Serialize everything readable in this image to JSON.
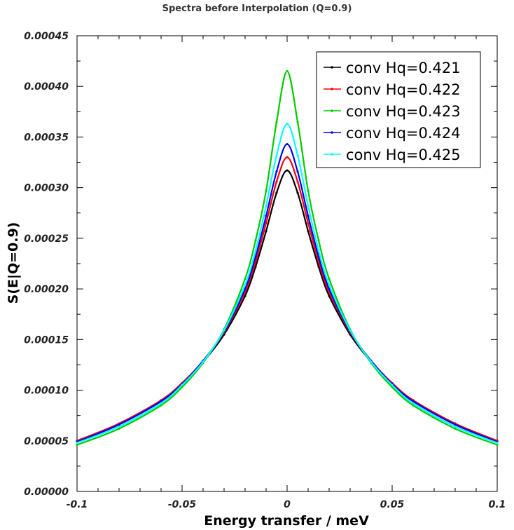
{
  "chart_data": {
    "type": "line",
    "title": "Spectra before Interpolation (Q=0.9)",
    "xlabel": "Energy transfer / meV",
    "ylabel": "S(E|Q=0.9)",
    "xlim": [
      -0.1,
      0.1
    ],
    "ylim": [
      0,
      0.00045
    ],
    "xticks": [
      -0.1,
      -0.05,
      0,
      0.05,
      0.1
    ],
    "xtick_labels": [
      "-0.1",
      "-0.05",
      "0",
      "0.05",
      "0.1"
    ],
    "yticks": [
      0,
      5e-05,
      0.0001,
      0.00015,
      0.0002,
      0.00025,
      0.0003,
      0.00035,
      0.0004,
      0.00045
    ],
    "ytick_labels": [
      "0.00000",
      "0.00005",
      "0.00010",
      "0.00015",
      "0.00020",
      "0.00025",
      "0.00030",
      "0.00035",
      "0.00040",
      "0.00045"
    ],
    "grid": false,
    "legend_position": "top-right",
    "x": [
      -0.1,
      -0.08,
      -0.06,
      -0.05,
      -0.04,
      -0.03,
      -0.02,
      -0.015,
      -0.01,
      -0.005,
      0,
      0.005,
      0.01,
      0.015,
      0.02,
      0.03,
      0.04,
      0.05,
      0.06,
      0.08,
      0.1
    ],
    "series": [
      {
        "name": "conv Hq=0.421",
        "color": "#000000",
        "values": [
          5e-05,
          6.7e-05,
          9e-05,
          0.000107,
          0.000128,
          0.000155,
          0.000193,
          0.000222,
          0.000257,
          0.000295,
          0.000317,
          0.000295,
          0.000257,
          0.000222,
          0.000193,
          0.000155,
          0.000128,
          0.000107,
          9e-05,
          6.7e-05,
          5e-05
        ]
      },
      {
        "name": "conv Hq=0.422",
        "color": "#ff0000",
        "values": [
          5e-05,
          6.7e-05,
          9e-05,
          0.000107,
          0.000129,
          0.000157,
          0.000197,
          0.000227,
          0.000265,
          0.000306,
          0.00033,
          0.000306,
          0.000265,
          0.000227,
          0.000197,
          0.000157,
          0.000129,
          0.000107,
          9e-05,
          6.7e-05,
          5e-05
        ]
      },
      {
        "name": "conv Hq=0.423",
        "color": "#00cc00",
        "values": [
          4.6e-05,
          6.2e-05,
          8.5e-05,
          0.000103,
          0.000127,
          0.00016,
          0.00021,
          0.000248,
          0.000297,
          0.000365,
          0.000415,
          0.000365,
          0.000297,
          0.000248,
          0.00021,
          0.00016,
          0.000127,
          0.000103,
          8.5e-05,
          6.2e-05,
          4.6e-05
        ]
      },
      {
        "name": "conv Hq=0.424",
        "color": "#0000ff",
        "values": [
          4.9e-05,
          6.6e-05,
          8.9e-05,
          0.000106,
          0.000129,
          0.000158,
          0.0002,
          0.000232,
          0.000272,
          0.000316,
          0.000343,
          0.000316,
          0.000272,
          0.000232,
          0.0002,
          0.000158,
          0.000129,
          0.000106,
          8.9e-05,
          6.6e-05,
          4.9e-05
        ]
      },
      {
        "name": "conv Hq=0.425",
        "color": "#00ffff",
        "values": [
          4.8e-05,
          6.4e-05,
          8.7e-05,
          0.000105,
          0.000128,
          0.000159,
          0.000204,
          0.000238,
          0.000282,
          0.000332,
          0.000363,
          0.000332,
          0.000282,
          0.000238,
          0.000204,
          0.000159,
          0.000128,
          0.000105,
          8.7e-05,
          6.4e-05,
          4.8e-05
        ]
      }
    ]
  }
}
